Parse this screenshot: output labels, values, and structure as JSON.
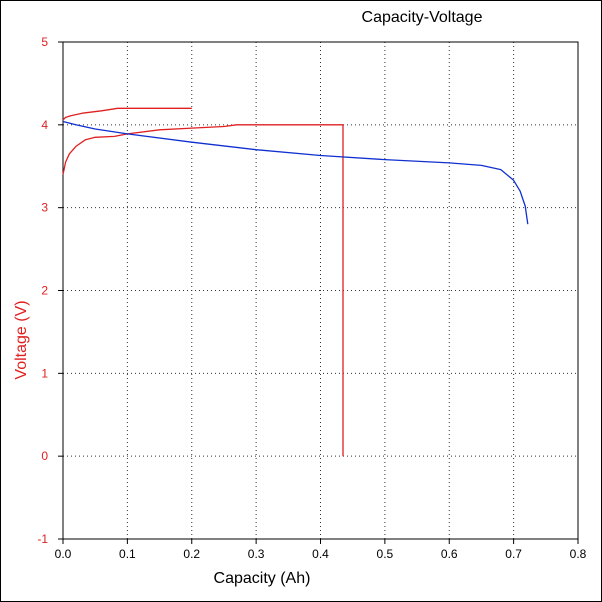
{
  "chart_data": {
    "type": "line",
    "title": "Capacity-Voltage",
    "xlabel": "Capacity (Ah)",
    "ylabel": "Voltage  (V)",
    "xlim": [
      0,
      0.8
    ],
    "ylim": [
      -1,
      5
    ],
    "xticks": [
      "0.0",
      "0.1",
      "0.2",
      "0.3",
      "0.4",
      "0.5",
      "0.6",
      "0.7",
      "0.8"
    ],
    "yticks": [
      "-1",
      "0",
      "1",
      "2",
      "3",
      "4",
      "5"
    ],
    "grid": true,
    "series": [
      {
        "color": "#e02020",
        "points": [
          [
            0,
            4.06
          ],
          [
            0.004,
            4.09
          ],
          [
            0.012,
            4.11
          ],
          [
            0.03,
            4.14
          ],
          [
            0.06,
            4.17
          ],
          [
            0.085,
            4.2
          ],
          [
            0.1,
            4.2
          ],
          [
            0.15,
            4.2
          ],
          [
            0.2,
            4.2
          ]
        ]
      },
      {
        "color": "#e02020",
        "points": [
          [
            0,
            3.4
          ],
          [
            0.004,
            3.55
          ],
          [
            0.01,
            3.65
          ],
          [
            0.02,
            3.74
          ],
          [
            0.035,
            3.82
          ],
          [
            0.05,
            3.85
          ],
          [
            0.08,
            3.86
          ],
          [
            0.1,
            3.89
          ],
          [
            0.15,
            3.94
          ],
          [
            0.2,
            3.96
          ],
          [
            0.25,
            3.98
          ],
          [
            0.27,
            4.0
          ],
          [
            0.35,
            4.0
          ],
          [
            0.435,
            4.0
          ],
          [
            0.435,
            0
          ]
        ]
      },
      {
        "color": "#1030d0",
        "points": [
          [
            0,
            4.04
          ],
          [
            0.02,
            4.0
          ],
          [
            0.05,
            3.95
          ],
          [
            0.1,
            3.89
          ],
          [
            0.2,
            3.79
          ],
          [
            0.3,
            3.7
          ],
          [
            0.4,
            3.63
          ],
          [
            0.5,
            3.58
          ],
          [
            0.6,
            3.54
          ],
          [
            0.65,
            3.51
          ],
          [
            0.68,
            3.46
          ],
          [
            0.7,
            3.33
          ],
          [
            0.71,
            3.2
          ],
          [
            0.718,
            3.02
          ],
          [
            0.722,
            2.8
          ]
        ]
      }
    ]
  },
  "colors": {
    "axis": "#000000",
    "grid": "#333333",
    "ytick_color": "#e02020",
    "xtick_color": "#000000"
  }
}
